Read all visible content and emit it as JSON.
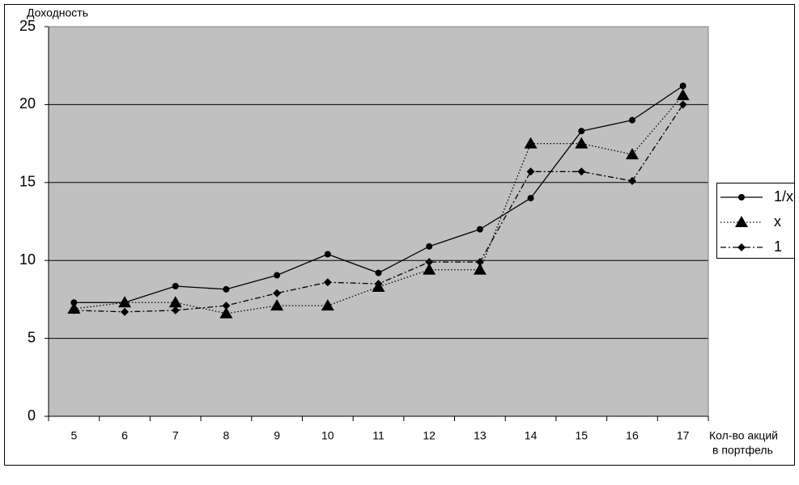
{
  "chart_data": {
    "type": "line",
    "y_label": "Доходность",
    "x_label": [
      "Кол-во акций",
      "в портфель"
    ],
    "categories": [
      "5",
      "6",
      "7",
      "8",
      "9",
      "10",
      "11",
      "12",
      "13",
      "14",
      "15",
      "16",
      "17"
    ],
    "series": [
      {
        "name": "1/x",
        "color": "#000000",
        "dash": "solid",
        "marker": "circle",
        "values": [
          7.3,
          7.3,
          8.35,
          8.15,
          9.05,
          10.4,
          9.2,
          10.9,
          12.0,
          14.0,
          18.3,
          19.0,
          21.2
        ]
      },
      {
        "name": "x",
        "color": "#000000",
        "dash": "dotted",
        "marker": "triangle",
        "values": [
          6.9,
          7.3,
          7.3,
          6.6,
          7.1,
          7.1,
          8.3,
          9.4,
          9.4,
          17.5,
          17.5,
          16.8,
          20.6
        ]
      },
      {
        "name": "1",
        "color": "#000000",
        "dash": "dashdot",
        "marker": "diamond",
        "values": [
          6.8,
          6.7,
          6.8,
          7.1,
          7.9,
          8.6,
          8.5,
          9.9,
          9.9,
          15.7,
          15.7,
          15.1,
          20.0
        ]
      }
    ],
    "ylim": [
      0,
      25
    ],
    "yticks": [
      0,
      5,
      10,
      15,
      20,
      25
    ],
    "grid": true,
    "plot_background": "#c0c0c0",
    "legend": "right"
  }
}
